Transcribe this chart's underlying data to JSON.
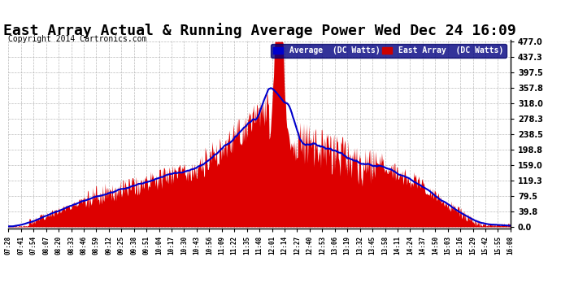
{
  "title": "East Array Actual & Running Average Power Wed Dec 24 16:09",
  "copyright": "Copyright 2014 Cartronics.com",
  "legend_labels": [
    "Average  (DC Watts)",
    "East Array  (DC Watts)"
  ],
  "legend_colors": [
    "#0000cc",
    "#cc0000"
  ],
  "legend_bg": "#000080",
  "yticks": [
    0.0,
    39.8,
    79.5,
    119.3,
    159.0,
    198.8,
    238.5,
    278.3,
    318.0,
    357.8,
    397.5,
    437.3,
    477.0
  ],
  "ymax": 477.0,
  "ymin": -5,
  "bg_color": "#ffffff",
  "plot_bg_color": "#ffffff",
  "grid_color": "#aaaaaa",
  "east_array_color": "#dd0000",
  "average_color": "#0000cc",
  "title_fontsize": 13,
  "xtick_labels": [
    "07:28",
    "07:41",
    "07:54",
    "08:07",
    "08:20",
    "08:33",
    "08:46",
    "08:59",
    "09:12",
    "09:25",
    "09:38",
    "09:51",
    "10:04",
    "10:17",
    "10:30",
    "10:43",
    "10:56",
    "11:09",
    "11:22",
    "11:35",
    "11:48",
    "12:01",
    "12:14",
    "12:27",
    "12:40",
    "12:53",
    "13:06",
    "13:19",
    "13:32",
    "13:45",
    "13:58",
    "14:11",
    "14:24",
    "14:37",
    "14:50",
    "15:03",
    "15:16",
    "15:29",
    "15:42",
    "15:55",
    "16:08"
  ]
}
